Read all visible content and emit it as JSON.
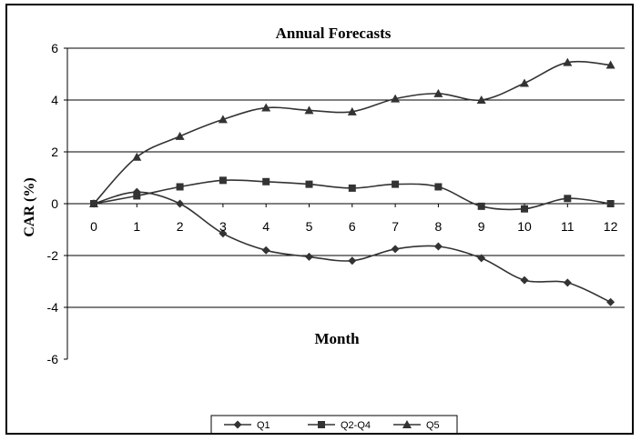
{
  "chart_data": {
    "type": "line",
    "title": "Annual Forecasts",
    "xlabel": "Month",
    "ylabel": "CAR (%)",
    "x": [
      0,
      1,
      2,
      3,
      4,
      5,
      6,
      7,
      8,
      9,
      10,
      11,
      12
    ],
    "xticks": [
      "0",
      "1",
      "2",
      "3",
      "4",
      "5",
      "6",
      "7",
      "8",
      "9",
      "10",
      "11",
      "12"
    ],
    "yticks": [
      "6",
      "4",
      "2",
      "0",
      "-2",
      "-4",
      "-6"
    ],
    "ylim": [
      -6,
      6
    ],
    "grid": "horizontal",
    "legend_position": "bottom",
    "series": [
      {
        "name": "Q1",
        "marker": "diamond",
        "color": "#333333",
        "values": [
          0,
          0.45,
          0,
          -1.15,
          -1.8,
          -2.05,
          -2.2,
          -1.75,
          -1.65,
          -2.1,
          -2.95,
          -3.05,
          -3.8
        ]
      },
      {
        "name": "Q2-Q4",
        "marker": "square",
        "color": "#333333",
        "values": [
          0,
          0.3,
          0.65,
          0.9,
          0.85,
          0.75,
          0.6,
          0.75,
          0.65,
          -0.1,
          -0.2,
          0.2,
          0
        ]
      },
      {
        "name": "Q5",
        "marker": "triangle",
        "color": "#333333",
        "values": [
          0,
          1.8,
          2.6,
          3.25,
          3.7,
          3.6,
          3.55,
          4.05,
          4.25,
          4.0,
          4.65,
          5.45,
          5.35
        ]
      }
    ]
  }
}
